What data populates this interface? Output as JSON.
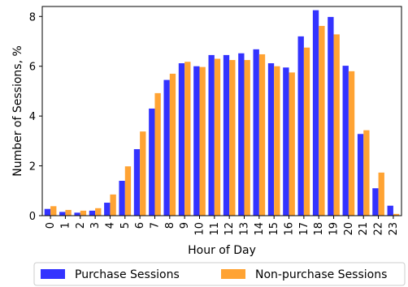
{
  "chart_data": {
    "type": "bar",
    "xlabel": "Hour of Day",
    "ylabel": "Number of Sessions, %",
    "categories": [
      "0",
      "1",
      "2",
      "3",
      "4",
      "5",
      "6",
      "7",
      "8",
      "9",
      "10",
      "11",
      "12",
      "13",
      "14",
      "15",
      "16",
      "17",
      "18",
      "19",
      "20",
      "21",
      "22",
      "23"
    ],
    "ylim": [
      0,
      8.4
    ],
    "yticks": [
      0,
      2,
      4,
      6,
      8
    ],
    "grid": false,
    "legend_position": "bottom-center",
    "series": [
      {
        "name": "Purchase Sessions",
        "color": "#3333ff",
        "values": [
          0.27,
          0.15,
          0.12,
          0.2,
          0.52,
          1.4,
          2.67,
          4.3,
          5.45,
          6.12,
          6.0,
          6.45,
          6.45,
          6.52,
          6.68,
          6.12,
          5.95,
          7.2,
          8.25,
          7.98,
          6.02,
          3.28,
          1.1,
          0.4
        ]
      },
      {
        "name": "Non-purchase Sessions",
        "color": "#ffa333",
        "values": [
          0.38,
          0.23,
          0.2,
          0.3,
          0.85,
          1.98,
          3.38,
          4.92,
          5.7,
          6.18,
          5.97,
          6.3,
          6.25,
          6.25,
          6.48,
          6.0,
          5.75,
          6.75,
          7.62,
          7.28,
          5.8,
          3.43,
          1.73,
          0.07
        ]
      }
    ]
  }
}
